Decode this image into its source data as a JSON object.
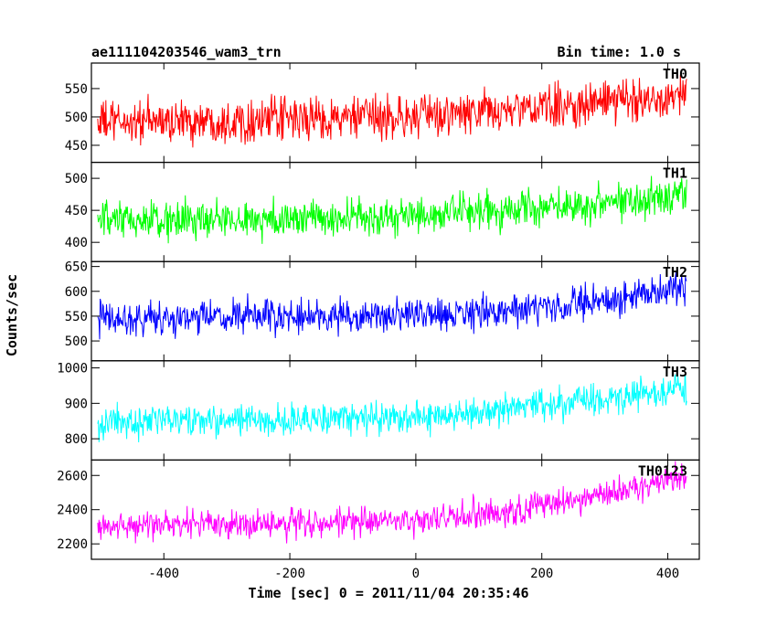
{
  "header": {
    "left": "ae111104203546_wam3_trn",
    "right": "Bin time: 1.0 s"
  },
  "chart_data": {
    "type": "line",
    "title": "ae111104203546_wam3_trn",
    "subtitle": "Bin time: 1.0 s",
    "xlabel": "Time [sec] 0 = 2011/11/04 20:35:46",
    "ylabel": "Counts/sec",
    "xlim": [
      -515,
      450
    ],
    "xticks": [
      -400,
      -200,
      0,
      200,
      400
    ],
    "x_start": -505,
    "x_end": 430,
    "bin": 1.0,
    "panels": [
      {
        "name": "TH0",
        "color": "#ff0000",
        "ylim": [
          420,
          595
        ],
        "yticks": [
          450,
          500,
          550
        ],
        "trend": [
          [
            -505,
            490
          ],
          [
            0,
            500
          ],
          [
            200,
            515
          ],
          [
            430,
            540
          ]
        ],
        "noise": 28
      },
      {
        "name": "TH1",
        "color": "#00ff00",
        "ylim": [
          370,
          525
        ],
        "yticks": [
          400,
          450,
          500
        ],
        "trend": [
          [
            -505,
            432
          ],
          [
            0,
            440
          ],
          [
            200,
            455
          ],
          [
            430,
            475
          ]
        ],
        "noise": 22
      },
      {
        "name": "TH2",
        "color": "#0000ff",
        "ylim": [
          460,
          660
        ],
        "yticks": [
          500,
          550,
          600,
          650
        ],
        "trend": [
          [
            -505,
            545
          ],
          [
            0,
            550
          ],
          [
            200,
            565
          ],
          [
            430,
            605
          ]
        ],
        "noise": 25
      },
      {
        "name": "TH3",
        "color": "#00ffff",
        "ylim": [
          740,
          1020
        ],
        "yticks": [
          800,
          900,
          1000
        ],
        "trend": [
          [
            -505,
            845
          ],
          [
            0,
            860
          ],
          [
            200,
            890
          ],
          [
            430,
            945
          ]
        ],
        "noise": 33
      },
      {
        "name": "TH0123",
        "color": "#ff00ff",
        "ylim": [
          2110,
          2690
        ],
        "yticks": [
          2200,
          2400,
          2600
        ],
        "trend": [
          [
            -505,
            2305
          ],
          [
            0,
            2330
          ],
          [
            200,
            2420
          ],
          [
            430,
            2590
          ]
        ],
        "noise": 65
      }
    ]
  }
}
